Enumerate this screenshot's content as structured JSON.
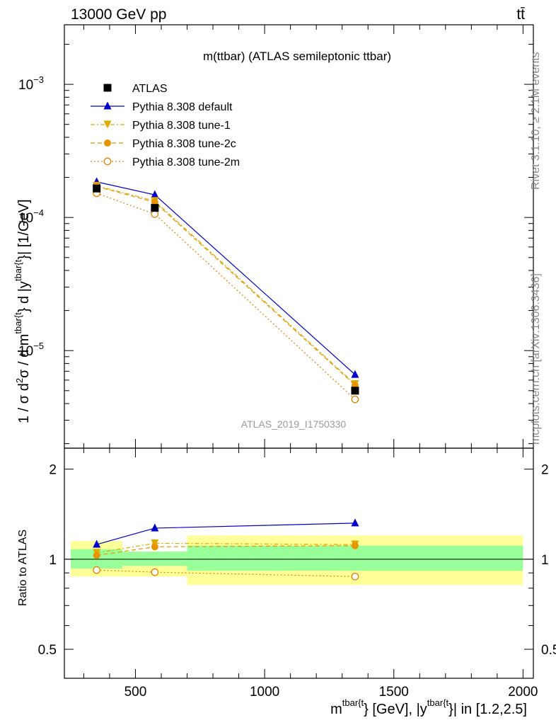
{
  "chart_data": {
    "type": "line",
    "header_left": "13000 GeV pp",
    "header_right": "tt̄",
    "title": "m(ttbar) (ATLAS semileptonic ttbar)",
    "analysis_label": "ATLAS_2019_I1750330",
    "side_label_top": "Rivet 3.1.10, ≥ 2.1M events",
    "side_label_bottom": "mcplots.cern.ch [arXiv:1306.3436]",
    "ylabel_parts": [
      "1 / σ d",
      "2",
      "σ / d m",
      "tbar{t",
      "} d |y",
      "tbar{t",
      "}| [1/GeV]"
    ],
    "xlabel_parts": [
      "m",
      "tbar{t",
      "} [GeV], |y",
      "tbar{t",
      "}| in [1.2,2.5]"
    ],
    "ratio_ylabel": "Ratio to ATLAS",
    "x_ticks": [
      {
        "value": 500,
        "label": "500"
      },
      {
        "value": 1000,
        "label": "1000"
      },
      {
        "value": 1500,
        "label": "1500"
      },
      {
        "value": 2000,
        "label": "2000"
      }
    ],
    "y_ticks": [
      {
        "value": 1e-05,
        "base": "10",
        "exp": "−5"
      },
      {
        "value": 0.0001,
        "base": "10",
        "exp": "−4"
      },
      {
        "value": 0.001,
        "base": "10",
        "exp": "−3"
      }
    ],
    "ratio_ticks": [
      {
        "value": 0.5,
        "label": "0.5"
      },
      {
        "value": 1,
        "label": "1"
      },
      {
        "value": 2,
        "label": "2"
      }
    ],
    "xlim": [
      225,
      2040
    ],
    "ylim": [
      1.85e-06,
      0.0028
    ],
    "y_log": true,
    "ratio_ylim": [
      0.4,
      2.35
    ],
    "ratio_log": true,
    "legend_position": "top-left",
    "bins": [
      {
        "low": 250,
        "high": 450
      },
      {
        "low": 450,
        "high": 700
      },
      {
        "low": 700,
        "high": 2000
      }
    ],
    "band_stat": [
      [
        0.93,
        1.08
      ],
      [
        0.95,
        1.06
      ],
      [
        0.915,
        1.11
      ]
    ],
    "band_total": [
      [
        0.875,
        1.15
      ],
      [
        0.875,
        1.06
      ],
      [
        0.82,
        1.2
      ]
    ],
    "data": {
      "name": "ATLAS",
      "x": [
        350,
        575,
        1350
      ],
      "y": [
        0.000165,
        0.000118,
        5e-06
      ]
    },
    "series": [
      {
        "name": "Pythia 8.308 default",
        "color": "#0000cc",
        "style": "solid",
        "marker": "triangle-up",
        "x": [
          350,
          575,
          1350
        ],
        "y": [
          0.000185,
          0.000148,
          6.6e-06
        ],
        "ratio": [
          1.12,
          1.27,
          1.32
        ]
      },
      {
        "name": "Pythia 8.308 tune-1",
        "color": "#ddaa00",
        "style": "dashdot",
        "marker": "triangle-down",
        "x": [
          350,
          575,
          1350
        ],
        "y": [
          0.000173,
          0.000133,
          5.6e-06
        ],
        "ratio": [
          1.05,
          1.13,
          1.12
        ]
      },
      {
        "name": "Pythia 8.308 tune-2c",
        "color": "#e69500",
        "style": "dashed",
        "marker": "circle-filled",
        "x": [
          350,
          575,
          1350
        ],
        "y": [
          0.000171,
          0.00013,
          5.5e-06
        ],
        "ratio": [
          1.03,
          1.1,
          1.11
        ]
      },
      {
        "name": "Pythia 8.308 tune-2m",
        "color": "#e08000",
        "style": "dotted",
        "marker": "circle-open",
        "x": [
          350,
          575,
          1350
        ],
        "y": [
          0.000152,
          0.000106,
          4.3e-06
        ],
        "ratio": [
          0.92,
          0.905,
          0.875
        ]
      }
    ]
  }
}
